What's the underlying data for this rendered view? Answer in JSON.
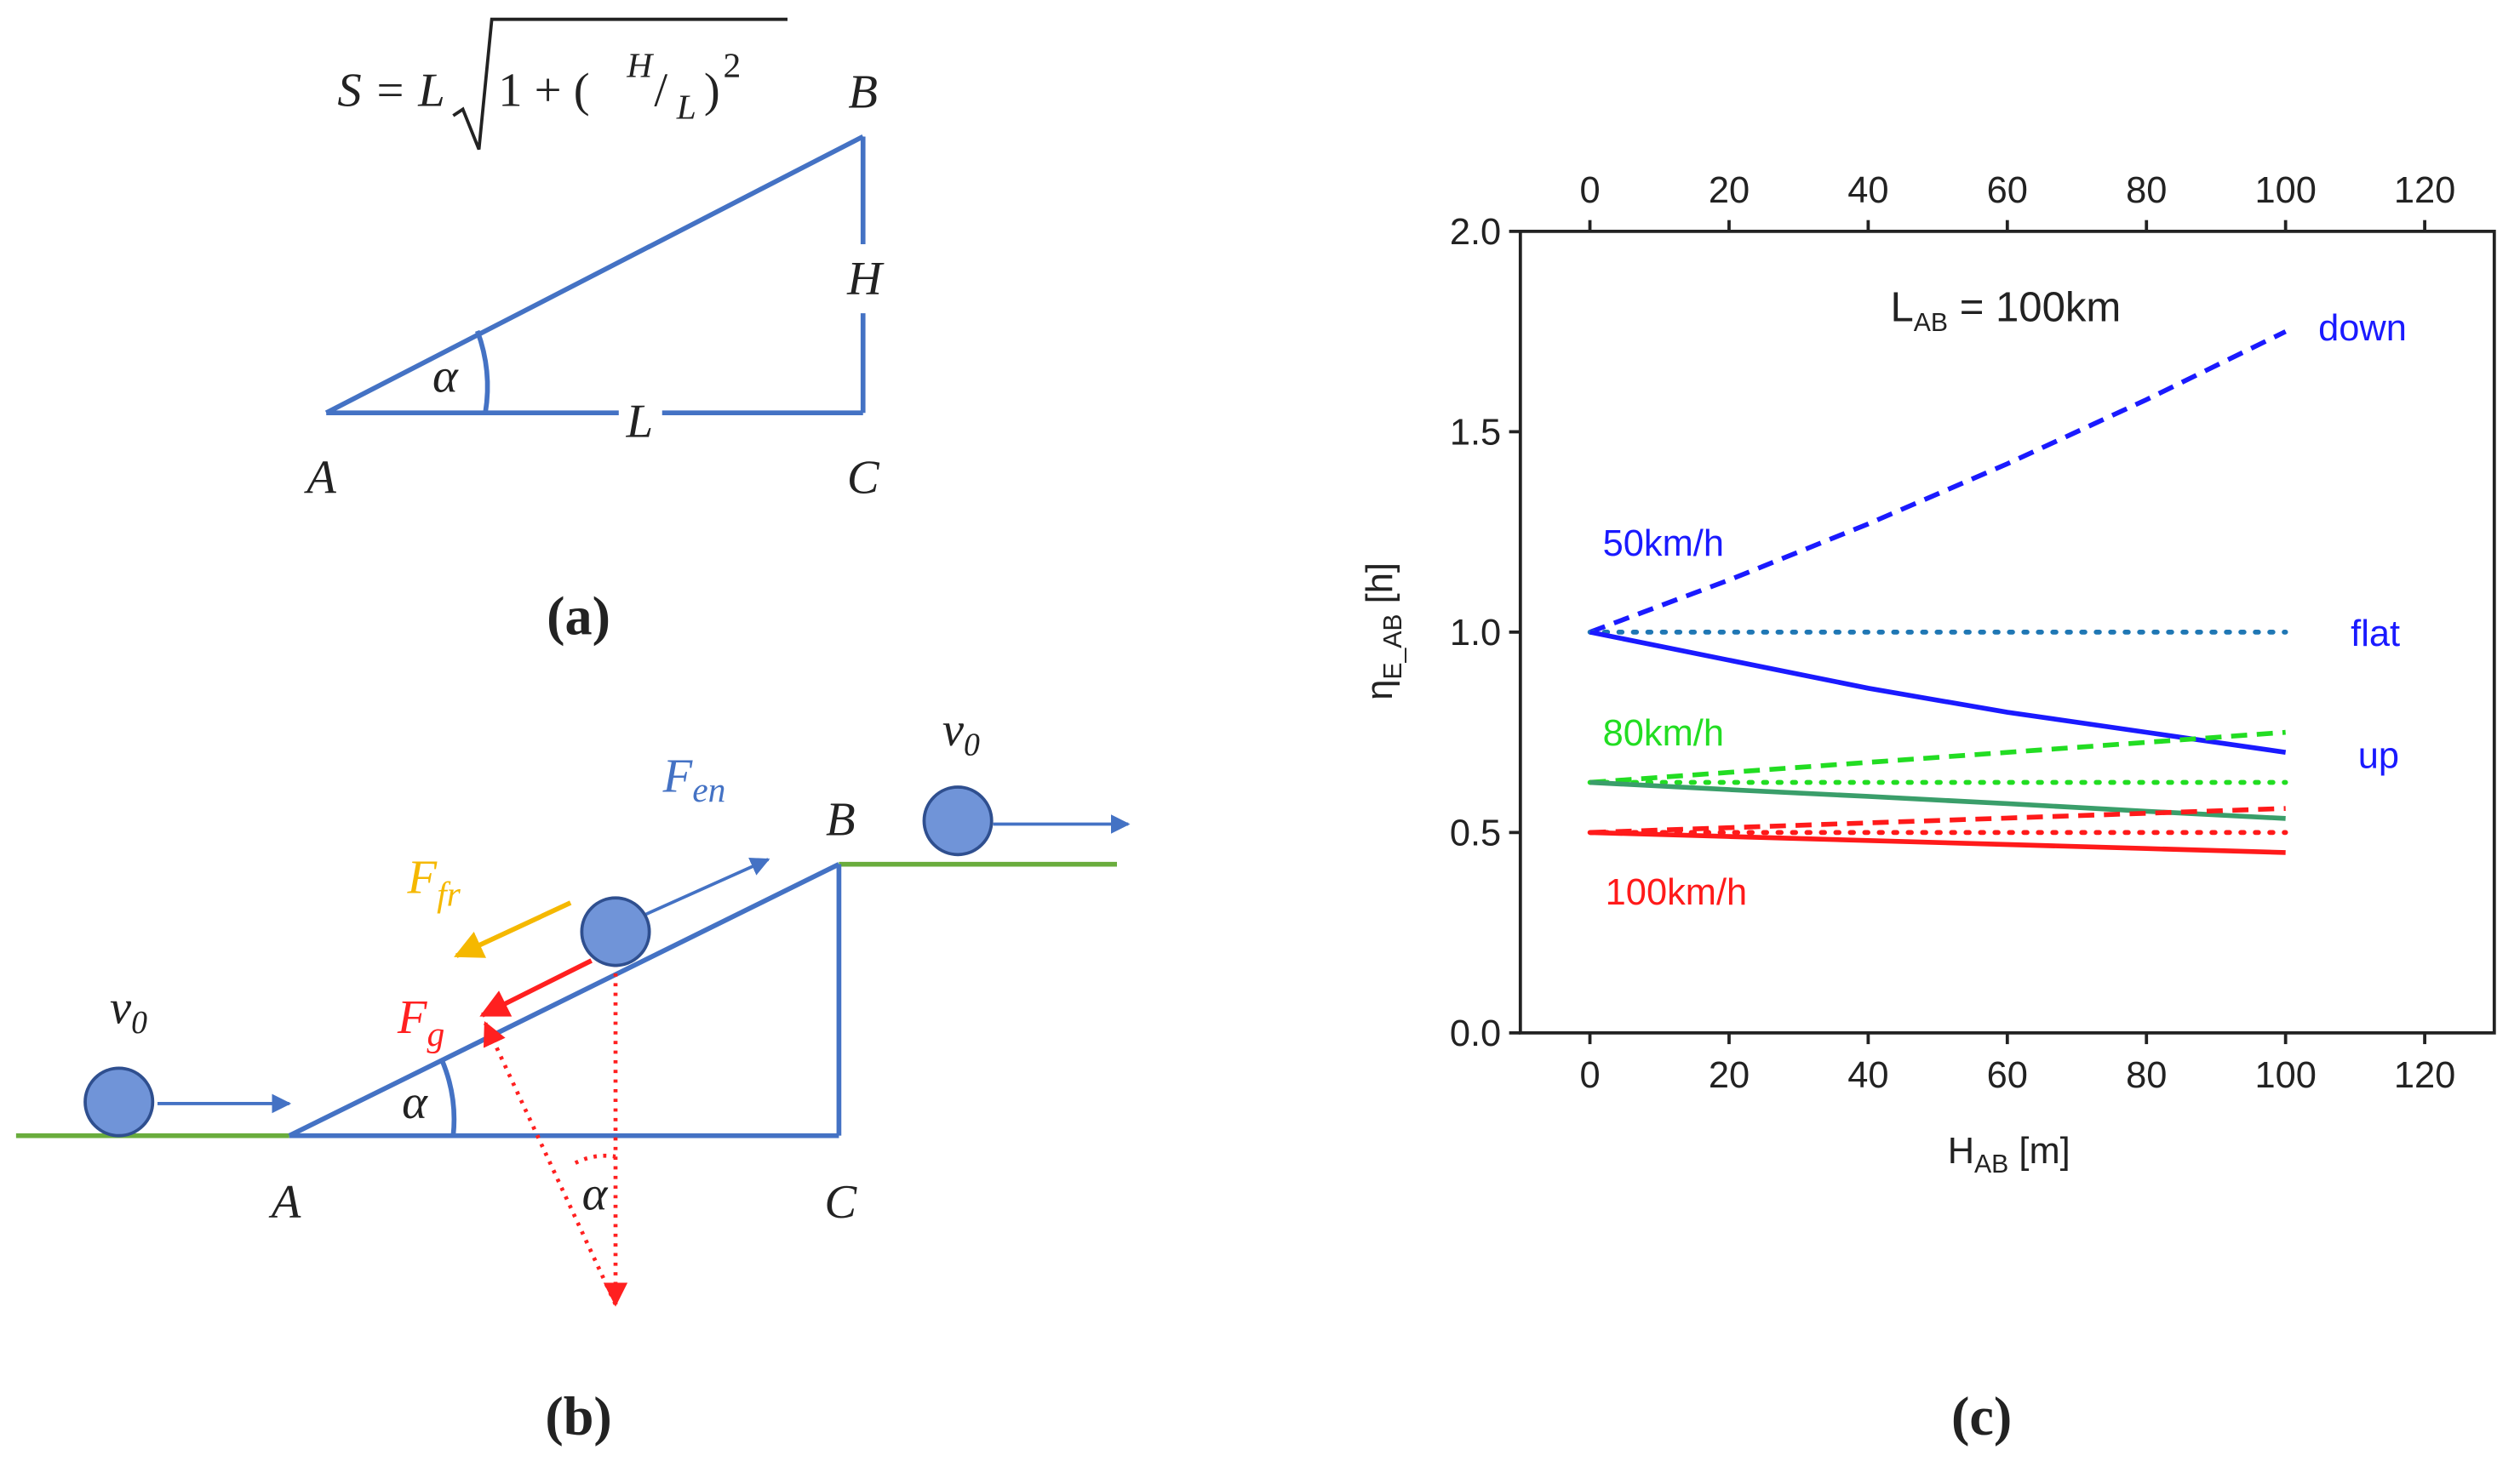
{
  "diagrams": {
    "a": {
      "formula": [
        "S = L",
        "1 + (",
        "H",
        "/",
        "L",
        ")",
        "2"
      ],
      "labels": {
        "B": "B",
        "H": "H",
        "alpha": "α",
        "L": "L",
        "A": "A",
        "C": "C"
      },
      "caption": "(a)"
    },
    "b": {
      "v0_left": {
        "main": "v",
        "sub": "0"
      },
      "v0_right": {
        "main": "v",
        "sub": "0"
      },
      "f_en": {
        "main": "F",
        "sub": "en"
      },
      "f_fr": {
        "main": "F",
        "sub": "fr"
      },
      "f_g": {
        "main": "F",
        "sub": "g"
      },
      "labels": {
        "B": "B",
        "A": "A",
        "C": "C",
        "alpha_ramp": "α",
        "alpha_low": "α"
      },
      "caption": "(b)"
    }
  },
  "chart_data": {
    "type": "line",
    "caption": "(c)",
    "xlabel": {
      "main": "H",
      "sub": "AB",
      "rest": " [m]"
    },
    "ylabel": {
      "main": "η",
      "sub": "E_AB",
      "rest": " [h]"
    },
    "title_annotation": {
      "main": "L",
      "sub": "AB",
      "rest": " = 100km"
    },
    "annotations": [
      {
        "text": "down",
        "color": "#1a1aff"
      },
      {
        "text": "flat",
        "color": "#1a1aff"
      },
      {
        "text": "up",
        "color": "#1a1aff"
      },
      {
        "text": "50km/h",
        "color": "#1a1aff"
      },
      {
        "text": "80km/h",
        "color": "#22dd22"
      },
      {
        "text": "100km/h",
        "color": "#ff1a1a"
      }
    ],
    "x": [
      0,
      20,
      40,
      60,
      80,
      100
    ],
    "series": [
      {
        "color": "#1a1aff",
        "dash": "dashed",
        "values": [
          1.0,
          1.13,
          1.27,
          1.42,
          1.58,
          1.75
        ]
      },
      {
        "color": "#1f77b4",
        "dash": "dotted",
        "values": [
          1.0,
          1.0,
          1.0,
          1.0,
          1.0,
          1.0
        ]
      },
      {
        "color": "#1a1aff",
        "dash": "solid",
        "values": [
          1.0,
          0.93,
          0.86,
          0.8,
          0.75,
          0.7
        ]
      },
      {
        "color": "#22dd22",
        "dash": "dashed",
        "values": [
          0.625,
          0.65,
          0.675,
          0.7,
          0.725,
          0.75
        ]
      },
      {
        "color": "#22dd22",
        "dash": "dotted",
        "values": [
          0.625,
          0.625,
          0.625,
          0.625,
          0.625,
          0.625
        ]
      },
      {
        "color": "#3a9e6a",
        "dash": "solid",
        "values": [
          0.625,
          0.607,
          0.59,
          0.572,
          0.553,
          0.535
        ]
      },
      {
        "color": "#ff1a1a",
        "dash": "dashed",
        "values": [
          0.5,
          0.512,
          0.524,
          0.536,
          0.548,
          0.56
        ]
      },
      {
        "color": "#ff1a1a",
        "dash": "dotted",
        "values": [
          0.5,
          0.5,
          0.5,
          0.5,
          0.5,
          0.5
        ]
      },
      {
        "color": "#ff1a1a",
        "dash": "solid",
        "values": [
          0.5,
          0.49,
          0.48,
          0.47,
          0.46,
          0.45
        ]
      }
    ],
    "xlim": [
      -10,
      130
    ],
    "xticks": [
      0,
      20,
      40,
      60,
      80,
      100,
      120
    ],
    "ylim": [
      0,
      2
    ],
    "yticks": [
      {
        "value": 0,
        "label": "0.0"
      },
      {
        "value": 0.5,
        "label": "0.5"
      },
      {
        "value": 1,
        "label": "1.0"
      },
      {
        "value": 1.5,
        "label": "1.5"
      },
      {
        "value": 2,
        "label": "2.0"
      }
    ],
    "top_axis": true
  }
}
